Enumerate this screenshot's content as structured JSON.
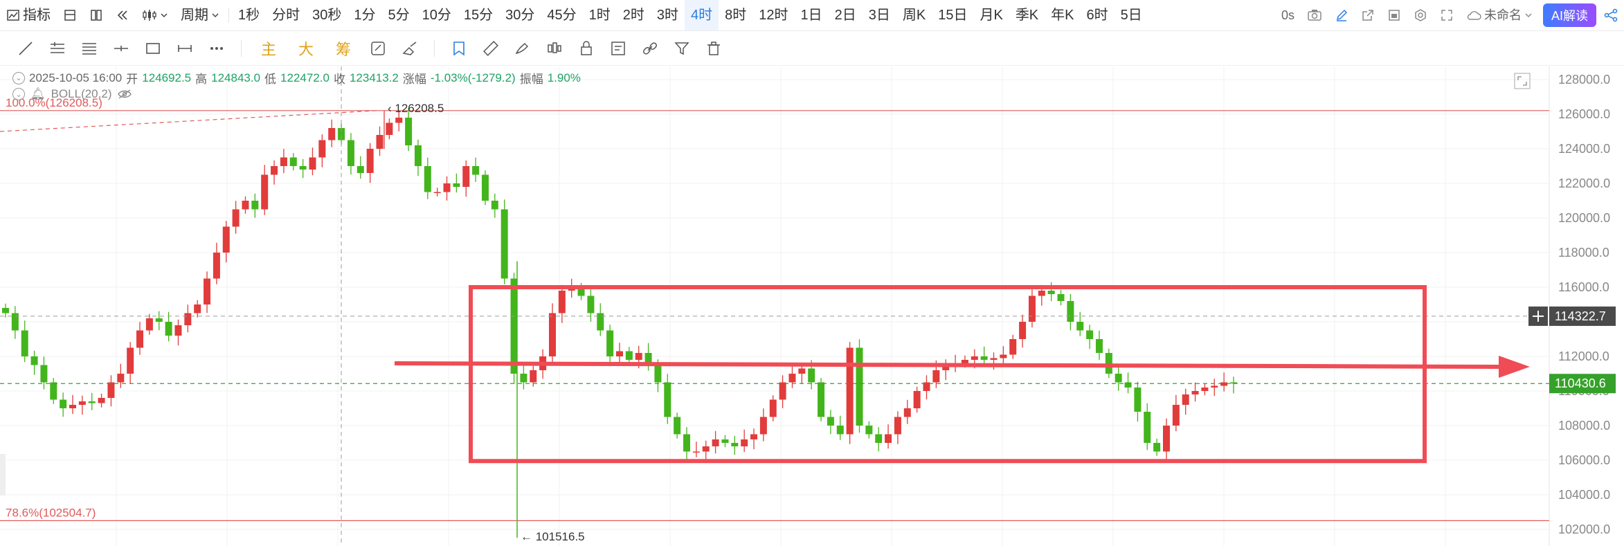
{
  "toolbar": {
    "indicator": "指标",
    "period": "周期",
    "periods": [
      "1秒",
      "分时",
      "30秒",
      "1分",
      "5分",
      "10分",
      "15分",
      "30分",
      "45分",
      "1时",
      "2时",
      "3时",
      "4时",
      "8时",
      "12时",
      "1日",
      "2日",
      "3日",
      "周K",
      "15日",
      "月K",
      "季K",
      "年K",
      "6时",
      "5日"
    ],
    "active_period": "4时",
    "countdown": "0s",
    "layout_name": "未命名",
    "ai_label": "AI解读"
  },
  "drawing_tools": {
    "text_buttons": [
      "主",
      "大",
      "筹"
    ]
  },
  "ohlc": {
    "datetime": "2025-10-05 16:00",
    "open_label": "开",
    "open": "124692.5",
    "high_label": "高",
    "high": "124843.0",
    "low_label": "低",
    "low": "122472.0",
    "close_label": "收",
    "close": "123413.2",
    "change_label": "涨幅",
    "change": "-1.03%(-1279.2)",
    "amp_label": "振幅",
    "amplitude": "1.90%"
  },
  "indicator_label": "BOLL(20,2)",
  "colors": {
    "up": "#e23b3b",
    "down": "#43b51c",
    "box": "#ef4c55",
    "fib": "#e05a5a",
    "last_price_bg": "#36a12a",
    "cross_bg": "#4a4a4a"
  },
  "chart_data": {
    "type": "candlestick",
    "ylim": [
      101500,
      128500
    ],
    "y_ticks": [
      "128000.0",
      "126000.0",
      "124000.0",
      "122000.0",
      "120000.0",
      "118000.0",
      "116000.0",
      "114000.0",
      "112000.0",
      "110000.0",
      "108000.0",
      "106000.0",
      "104000.0",
      "102000.0"
    ],
    "last_price": {
      "value": 110430.6,
      "label": "110430.6"
    },
    "crosshair_price": {
      "value": 114322.7,
      "label": "114322.7"
    },
    "fib_levels": [
      {
        "label": "100.0%(126208.5)",
        "value": 126208.5
      },
      {
        "label": "78.6%(102504.7)",
        "value": 102504.7
      }
    ],
    "annotations": [
      {
        "label": "126208.5",
        "value": 126208.5
      },
      {
        "label": "101516.5",
        "value": 101516.5
      }
    ],
    "close_path": [
      114500,
      113500,
      112000,
      111500,
      110500,
      109500,
      109000,
      109200,
      109400,
      109300,
      109600,
      110500,
      111000,
      112500,
      113500,
      114200,
      114000,
      113200,
      113800,
      114500,
      115000,
      116500,
      118000,
      119500,
      120500,
      121000,
      120500,
      122500,
      123000,
      123500,
      123000,
      122800,
      123500,
      124500,
      125200,
      124500,
      123000,
      122600,
      124000,
      124800,
      125500,
      125800,
      124200,
      123000,
      121500,
      121500,
      122000,
      121800,
      123000,
      122500,
      121000,
      120500,
      116500,
      111000,
      110500,
      111200,
      112000,
      114500,
      115800,
      116000,
      115500,
      114500,
      113500,
      112000,
      112300,
      111800,
      112200,
      111500,
      110500,
      108500,
      107500,
      106500,
      106500,
      106800,
      107200,
      107000,
      106800,
      107200,
      107500,
      108500,
      109500,
      110500,
      111000,
      111300,
      110500,
      108500,
      108000,
      107500,
      112500,
      108000,
      107500,
      107000,
      107500,
      108500,
      109000,
      110000,
      110500,
      111200,
      111500,
      111600,
      111800,
      112000,
      111800,
      111900,
      112100,
      113000,
      114000,
      115500,
      115800,
      115600,
      115200,
      114000,
      113500,
      113000,
      112200,
      111000,
      110500,
      110200,
      108800,
      107000,
      106500,
      108000,
      109200,
      109800,
      110000,
      110200,
      110300,
      110500,
      110430.6
    ]
  }
}
